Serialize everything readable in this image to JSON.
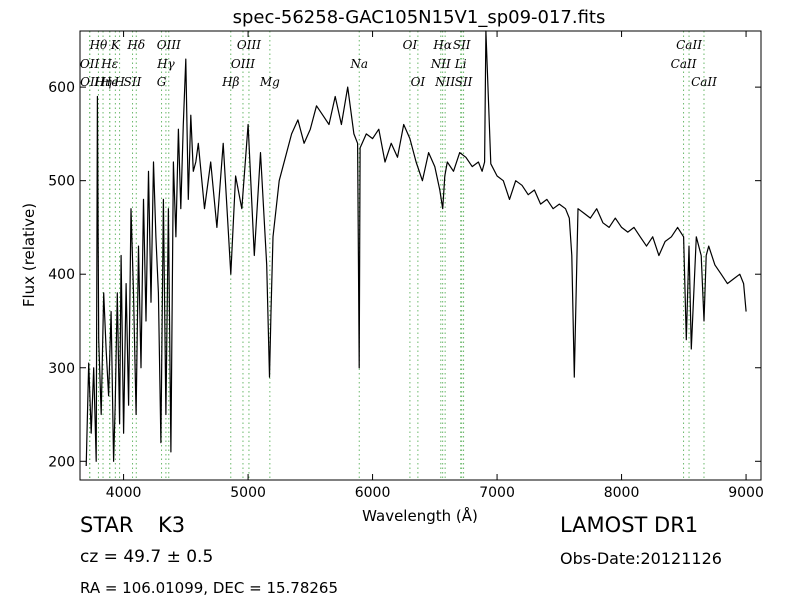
{
  "figure_title": "spec-56258-GAC105N15V1_sp09-017.fits",
  "info": {
    "object_type": "STAR",
    "object_class": "K3",
    "survey": "LAMOST DR1",
    "redshift": "cz = 49.7 ± 0.5",
    "obs_date": "Obs-Date:20121126",
    "coords": "RA = 106.01099, DEC = 15.78265"
  },
  "colors": {
    "spectrum": "#000000",
    "line_markers": "#6ab86a",
    "axes": "#000000"
  },
  "chart_data": {
    "type": "line",
    "title": "spec-56258-GAC105N15V1_sp09-017.fits",
    "xlabel": "Wavelength (Å)",
    "ylabel": "Flux (relative)",
    "xlim": [
      3650,
      9120
    ],
    "ylim": [
      180,
      660
    ],
    "xticks": [
      4000,
      5000,
      6000,
      7000,
      8000,
      9000
    ],
    "yticks": [
      200,
      300,
      400,
      500,
      600
    ],
    "grid": false,
    "series": [
      {
        "x": [
          3700,
          3720,
          3740,
          3760,
          3780,
          3790,
          3800,
          3820,
          3840,
          3860,
          3880,
          3900,
          3920,
          3933,
          3950,
          3968,
          3980,
          4000,
          4020,
          4040,
          4060,
          4080,
          4101,
          4120,
          4140,
          4160,
          4180,
          4200,
          4220,
          4240,
          4260,
          4280,
          4300,
          4320,
          4340,
          4360,
          4380,
          4400,
          4420,
          4440,
          4460,
          4480,
          4500,
          4520,
          4540,
          4560,
          4580,
          4600,
          4650,
          4700,
          4750,
          4800,
          4861,
          4900,
          4950,
          5000,
          5050,
          5100,
          5150,
          5172,
          5184,
          5200,
          5250,
          5300,
          5350,
          5400,
          5450,
          5500,
          5550,
          5600,
          5650,
          5700,
          5750,
          5800,
          5850,
          5880,
          5893,
          5900,
          5950,
          6000,
          6050,
          6100,
          6150,
          6200,
          6250,
          6300,
          6350,
          6400,
          6450,
          6500,
          6540,
          6563,
          6580,
          6600,
          6650,
          6700,
          6750,
          6800,
          6850,
          6880,
          6900,
          6910,
          6950,
          7000,
          7050,
          7100,
          7150,
          7200,
          7250,
          7300,
          7350,
          7400,
          7450,
          7500,
          7550,
          7580,
          7600,
          7620,
          7650,
          7700,
          7750,
          7800,
          7850,
          7900,
          7950,
          8000,
          8050,
          8100,
          8150,
          8200,
          8250,
          8300,
          8350,
          8400,
          8450,
          8498,
          8520,
          8542,
          8560,
          8600,
          8640,
          8662,
          8680,
          8700,
          8750,
          8800,
          8850,
          8900,
          8950,
          8980,
          9000
        ],
        "y": [
          195,
          305,
          230,
          300,
          200,
          590,
          330,
          250,
          380,
          320,
          270,
          360,
          200,
          260,
          380,
          240,
          420,
          230,
          390,
          260,
          470,
          380,
          250,
          430,
          300,
          480,
          350,
          510,
          370,
          520,
          440,
          380,
          220,
          480,
          250,
          470,
          210,
          520,
          440,
          555,
          470,
          560,
          630,
          480,
          570,
          510,
          520,
          540,
          470,
          520,
          450,
          540,
          400,
          505,
          470,
          560,
          420,
          530,
          410,
          290,
          360,
          440,
          500,
          525,
          550,
          565,
          540,
          555,
          580,
          570,
          560,
          590,
          560,
          600,
          550,
          540,
          300,
          535,
          550,
          545,
          555,
          520,
          540,
          525,
          560,
          545,
          520,
          500,
          530,
          515,
          490,
          470,
          505,
          520,
          510,
          530,
          525,
          515,
          520,
          510,
          520,
          660,
          518,
          505,
          500,
          480,
          500,
          495,
          485,
          490,
          475,
          480,
          470,
          475,
          470,
          460,
          420,
          290,
          470,
          465,
          460,
          470,
          455,
          450,
          460,
          450,
          445,
          450,
          440,
          430,
          440,
          420,
          435,
          440,
          450,
          440,
          330,
          430,
          320,
          440,
          420,
          350,
          420,
          430,
          410,
          400,
          390,
          395,
          400,
          390,
          360
        ]
      }
    ],
    "line_markers": [
      {
        "label": "Hθ",
        "wavelength": 3798,
        "row": 0
      },
      {
        "label": "K",
        "wavelength": 3934,
        "row": 0
      },
      {
        "label": "Hδ",
        "wavelength": 4102,
        "row": 0
      },
      {
        "label": "OIII",
        "wavelength": 4363,
        "row": 0
      },
      {
        "label": "OIII",
        "wavelength": 5007,
        "row": 0
      },
      {
        "label": "OI",
        "wavelength": 6300,
        "row": 0
      },
      {
        "label": "Hα",
        "wavelength": 6563,
        "row": 0
      },
      {
        "label": "SII",
        "wavelength": 6716,
        "row": 0
      },
      {
        "label": "CaII",
        "wavelength": 8542,
        "row": 0
      },
      {
        "label": "OII",
        "wavelength": 3727,
        "row": 1
      },
      {
        "label": "Hε",
        "wavelength": 3889,
        "row": 1
      },
      {
        "label": "Hγ",
        "wavelength": 4340,
        "row": 1
      },
      {
        "label": "OIII",
        "wavelength": 4959,
        "row": 1
      },
      {
        "label": "NII",
        "wavelength": 6548,
        "row": 1
      },
      {
        "label": "Li",
        "wavelength": 6708,
        "row": 1
      },
      {
        "label": "CaII",
        "wavelength": 8498,
        "row": 1
      },
      {
        "label": "Na",
        "wavelength": 5893,
        "row": 1
      },
      {
        "label": "OII",
        "wavelength": 3729,
        "row": 2
      },
      {
        "label": "Hη",
        "wavelength": 3835,
        "row": 2
      },
      {
        "label": "SII",
        "wavelength": 4072,
        "row": 2
      },
      {
        "label": "G",
        "wavelength": 4305,
        "row": 2
      },
      {
        "label": "Hβ",
        "wavelength": 4861,
        "row": 2
      },
      {
        "label": "Mg",
        "wavelength": 5175,
        "row": 2
      },
      {
        "label": "OI",
        "wavelength": 6364,
        "row": 2
      },
      {
        "label": "NII",
        "wavelength": 6583,
        "row": 2
      },
      {
        "label": "SII",
        "wavelength": 6731,
        "row": 2
      },
      {
        "label": "CaII",
        "wavelength": 8662,
        "row": 2
      },
      {
        "label": "H",
        "wavelength": 3968,
        "row": 2
      },
      {
        "label": "He",
        "wavelength": 3889,
        "row": 2
      }
    ]
  }
}
